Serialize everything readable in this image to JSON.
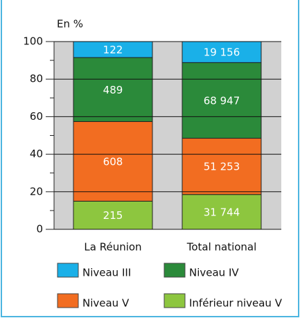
{
  "chart_data": {
    "type": "bar",
    "stacked": true,
    "normalize": true,
    "ylabel": "En %",
    "categories": [
      "La Réunion",
      "Total national"
    ],
    "series": [
      {
        "name": "Inférieur niveau V",
        "color": "#8dc63f",
        "values": [
          215,
          31744
        ],
        "value_labels": [
          "215",
          "31 744"
        ]
      },
      {
        "name": "Niveau V",
        "color": "#f26d21",
        "values": [
          608,
          51253
        ],
        "value_labels": [
          "608",
          "51 253"
        ]
      },
      {
        "name": "Niveau IV",
        "color": "#2b8a3a",
        "values": [
          489,
          68947
        ],
        "value_labels": [
          "489",
          "68 947"
        ]
      },
      {
        "name": "Niveau III",
        "color": "#1ab0e8",
        "values": [
          122,
          19156
        ],
        "value_labels": [
          "122",
          "19 156"
        ]
      }
    ],
    "ylim": [
      0,
      100
    ],
    "yticks": [
      0,
      20,
      40,
      60,
      80,
      100
    ],
    "yminor_ticks": [
      10,
      30,
      50,
      70,
      90
    ],
    "grid": true
  }
}
